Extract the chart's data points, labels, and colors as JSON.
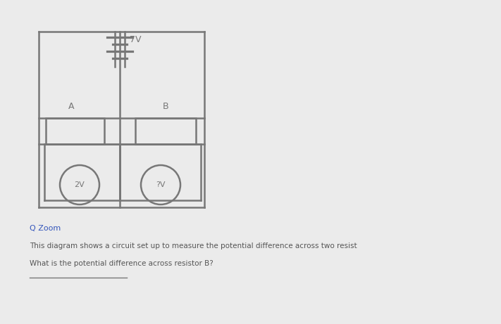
{
  "page_bg": "#ebebeb",
  "battery_label": "7V",
  "resistor_a_label": "A",
  "resistor_b_label": "B",
  "voltmeter_left_label": "2V",
  "voltmeter_right_label": "?V",
  "zoom_text": "Q Zoom",
  "text_line1": "This diagram shows a circuit set up to measure the potential difference across two resist",
  "text_line2": "What is the potential difference across resistor B?",
  "line_color": "#777777",
  "text_color": "#555555",
  "zoom_color": "#3355bb"
}
